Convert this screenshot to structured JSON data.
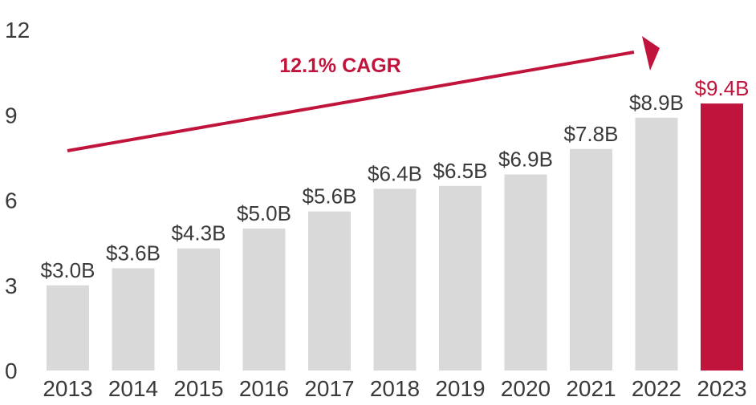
{
  "chart_data": {
    "type": "bar",
    "title": "",
    "xlabel": "",
    "ylabel": "",
    "categories": [
      "2013",
      "2014",
      "2015",
      "2016",
      "2017",
      "2018",
      "2019",
      "2020",
      "2021",
      "2022",
      "2023"
    ],
    "values": [
      3.0,
      3.6,
      4.3,
      5.0,
      5.6,
      6.4,
      6.5,
      6.9,
      7.8,
      8.9,
      9.4
    ],
    "data_labels": [
      "$3.0B",
      "$3.6B",
      "$4.3B",
      "$5.0B",
      "$5.6B",
      "$6.4B",
      "$6.5B",
      "$6.9B",
      "$7.8B",
      "$8.9B",
      "$9.4B"
    ],
    "y_ticks": [
      0,
      3,
      6,
      9,
      12
    ],
    "ylim": [
      0,
      12
    ],
    "grid": false,
    "highlight_index": 10,
    "annotation": "12.1% CAGR"
  },
  "colors": {
    "bar": "#d9d9d9",
    "highlight": "#c0143c",
    "accent": "#c0143c",
    "text": "#3a3a3a"
  }
}
